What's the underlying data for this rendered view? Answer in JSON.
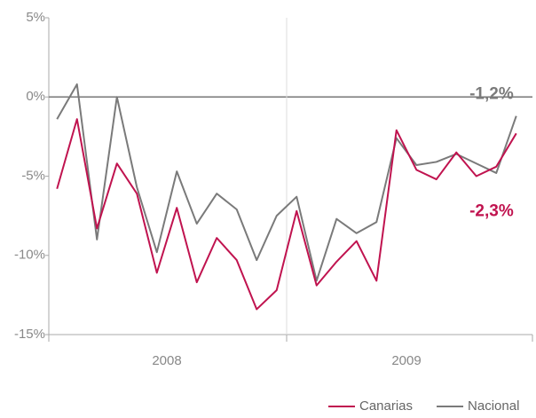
{
  "chart_data": {
    "type": "line",
    "categories": [
      null,
      null,
      null,
      null,
      null,
      null,
      null,
      null,
      null,
      null,
      null,
      null,
      null,
      null,
      null,
      null,
      null,
      null,
      null,
      null,
      null,
      null,
      null,
      null
    ],
    "x_groups": [
      "2008",
      "2009"
    ],
    "series": [
      {
        "name": "Canarias",
        "color": "#c0134f",
        "values": [
          -5.8,
          -1.4,
          -8.3,
          -4.2,
          -6.1,
          -11.1,
          -7.0,
          -11.7,
          -8.9,
          -10.3,
          -13.4,
          -12.2,
          -7.2,
          -11.9,
          -10.4,
          -9.1,
          -11.6,
          -2.1,
          -4.6,
          -5.2,
          -3.5,
          -5.0,
          -4.4,
          -2.3
        ],
        "value_labels": [
          null,
          null,
          null,
          null,
          null,
          null,
          null,
          null,
          null,
          null,
          null,
          null,
          null,
          null,
          null,
          null,
          null,
          null,
          null,
          null,
          null,
          null,
          null,
          "-2,3%"
        ]
      },
      {
        "name": "Nacional",
        "color": "#7a7a7a",
        "values": [
          -1.4,
          0.8,
          -9.0,
          0.0,
          -5.7,
          -9.8,
          -4.7,
          -8.0,
          -6.1,
          -7.1,
          -10.3,
          -7.5,
          -6.3,
          -11.6,
          -7.7,
          -8.6,
          -7.9,
          -2.6,
          -4.3,
          -4.1,
          -3.6,
          -4.2,
          -4.8,
          -1.2
        ],
        "value_labels": [
          null,
          null,
          null,
          null,
          null,
          null,
          null,
          null,
          null,
          null,
          null,
          null,
          null,
          null,
          null,
          null,
          null,
          null,
          null,
          null,
          null,
          null,
          null,
          "-1,2%"
        ]
      }
    ],
    "ylim": [
      -15,
      5
    ],
    "yticks": [
      {
        "value": -15,
        "label": "-15%"
      },
      {
        "value": -10,
        "label": "-10%"
      },
      {
        "value": -5,
        "label": "-5%"
      },
      {
        "value": 0,
        "label": "0%"
      },
      {
        "value": 5,
        "label": "5%"
      }
    ],
    "legend": "bottom-right"
  }
}
